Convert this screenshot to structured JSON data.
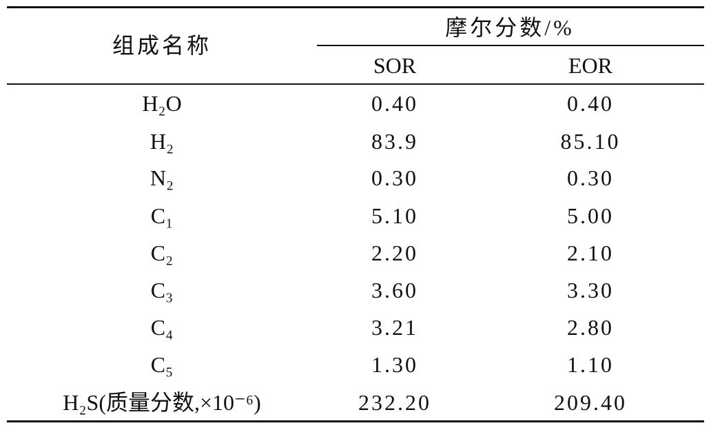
{
  "table": {
    "header": {
      "component": "组成名称",
      "group": "摩尔分数/%",
      "columns": [
        "SOR",
        "EOR"
      ]
    },
    "rows": [
      [
        "H₂O",
        "0.40",
        "0.40"
      ],
      [
        "H₂",
        "83.9",
        "85.10"
      ],
      [
        "N₂",
        "0.30",
        "0.30"
      ],
      [
        "C₁",
        "5.10",
        "5.00"
      ],
      [
        "C₂",
        "2.20",
        "2.10"
      ],
      [
        "C₃",
        "3.60",
        "3.30"
      ],
      [
        "C₄",
        "3.21",
        "2.80"
      ],
      [
        "C₅",
        "1.30",
        "1.10"
      ],
      [
        "H₂S(质量分数,×10⁻⁶)",
        "232.20",
        "209.40"
      ]
    ]
  }
}
